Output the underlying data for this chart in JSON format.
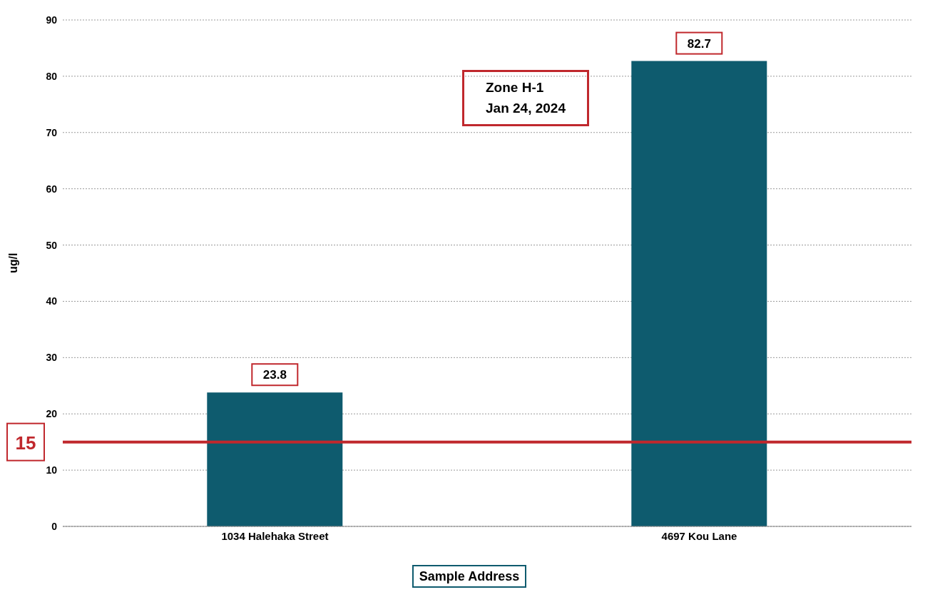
{
  "chart_data": {
    "type": "bar",
    "xlabel": "Sample Address",
    "ylabel": "ug/l",
    "categories": [
      "1034 Halehaka Street",
      "4697 Kou Lane"
    ],
    "values": [
      23.8,
      82.7
    ],
    "color": "#0e5b6e",
    "ylim": [
      0,
      90
    ],
    "yticks": [
      0,
      10,
      20,
      30,
      40,
      50,
      60,
      70,
      80,
      90
    ],
    "grid": "y",
    "data_labels": true,
    "ref_lines": [
      {
        "axis": "y",
        "value": 15,
        "label": "15",
        "color": "#c0282d"
      }
    ],
    "annotations": [
      "Zone H-1\nJan 24, 2024"
    ]
  }
}
